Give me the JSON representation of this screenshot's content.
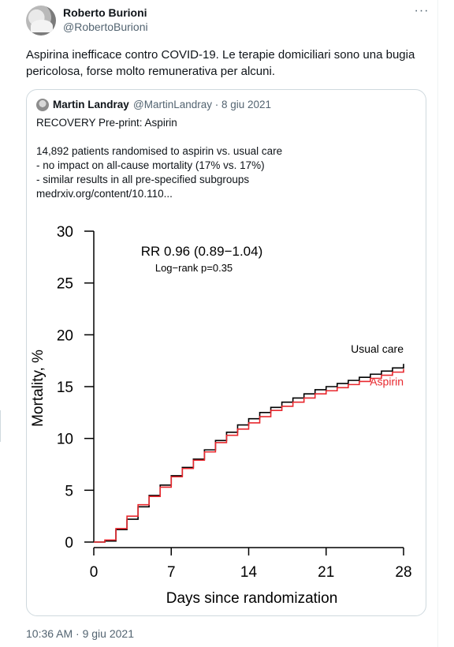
{
  "tweet": {
    "author_name": "Roberto Burioni",
    "author_handle": "@RobertoBurioni",
    "more_icon": "more-icon",
    "more_glyph": "···",
    "text": "Aspirina inefficace contro COVID-19. Le terapie domiciliari sono una bugia pericolosa, forse molto remunerativa per alcuni.",
    "timestamp": "10:36 AM · 9 giu 2021"
  },
  "quoted": {
    "author_name": "Martin Landray",
    "meta": "@MartinLandray · 8 giu 2021",
    "text": "RECOVERY Pre-print: Aspirin\n\n14,892 patients randomised to aspirin vs. usual care\n- no impact on all-cause mortality (17% vs. 17%)\n- similar results in all pre-specified subgroups\nmedrxiv.org/content/10.110..."
  },
  "chart_data": {
    "type": "line",
    "xlabel": "Days since randomization",
    "ylabel": "Mortality, %",
    "xlim": [
      0,
      28
    ],
    "ylim": [
      0,
      30
    ],
    "xticks": [
      0,
      7,
      14,
      21,
      28
    ],
    "yticks": [
      0,
      5,
      10,
      15,
      20,
      25,
      30
    ],
    "annotation_main": "RR 0.96 (0.89−1.04)",
    "annotation_sub": "Log−rank p=0.35",
    "series": [
      {
        "name": "Usual care",
        "color": "#000000",
        "x": [
          0,
          1,
          2,
          3,
          4,
          5,
          6,
          7,
          8,
          9,
          10,
          11,
          12,
          13,
          14,
          15,
          16,
          17,
          18,
          19,
          20,
          21,
          22,
          23,
          24,
          25,
          26,
          27,
          28
        ],
        "y": [
          0,
          0.1,
          1.2,
          2.2,
          3.4,
          4.5,
          5.5,
          6.4,
          7.2,
          8.0,
          8.9,
          9.8,
          10.6,
          11.3,
          11.9,
          12.5,
          13.0,
          13.5,
          13.9,
          14.3,
          14.7,
          15.0,
          15.3,
          15.6,
          15.9,
          16.2,
          16.5,
          16.8,
          17.2
        ]
      },
      {
        "name": "Aspirin",
        "color": "#e8282e",
        "x": [
          0,
          1,
          2,
          3,
          4,
          5,
          6,
          7,
          8,
          9,
          10,
          11,
          12,
          13,
          14,
          15,
          16,
          17,
          18,
          19,
          20,
          21,
          22,
          23,
          24,
          25,
          26,
          27,
          28
        ],
        "y": [
          0,
          0.2,
          1.3,
          2.5,
          3.6,
          4.4,
          5.3,
          6.3,
          7.1,
          7.9,
          8.7,
          9.6,
          10.3,
          10.9,
          11.5,
          12.1,
          12.7,
          13.1,
          13.5,
          13.9,
          14.3,
          14.6,
          14.9,
          15.2,
          15.5,
          15.8,
          16.1,
          16.4,
          16.7
        ]
      }
    ]
  }
}
